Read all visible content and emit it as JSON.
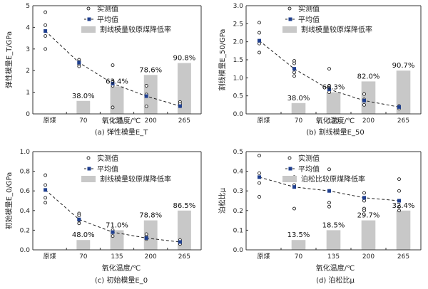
{
  "chart_data": [
    {
      "type": "bar",
      "categories": [
        "原煤",
        "70",
        "135",
        "200",
        "265"
      ],
      "ylabel": "弹性模量E_T/GPa",
      "xlabel": "氧化温度/℃",
      "caption": "(a) 弹性模量E_T",
      "ylim": [
        0,
        5
      ],
      "yticks": [
        "0",
        "1",
        "2",
        "3",
        "4",
        "5"
      ],
      "legend": [
        "实测值",
        "平均值",
        "割线模量较原煤降低率"
      ],
      "series": [
        {
          "kind": "scatter",
          "points": [
            [
              0,
              4.7
            ],
            [
              0,
              4.1
            ],
            [
              0,
              3.6
            ],
            [
              0,
              3.0
            ],
            [
              1,
              2.5
            ],
            [
              1,
              2.4
            ],
            [
              1,
              2.3
            ],
            [
              1,
              2.2
            ],
            [
              2,
              2.25
            ],
            [
              2,
              1.5
            ],
            [
              2,
              1.3
            ],
            [
              2,
              0.3
            ],
            [
              3,
              1.3
            ],
            [
              3,
              0.9
            ],
            [
              3,
              0.35
            ],
            [
              4,
              0.55
            ],
            [
              4,
              0.45
            ],
            [
              4,
              0.35
            ]
          ]
        },
        {
          "kind": "line",
          "values": [
            3.83,
            2.37,
            1.4,
            0.82,
            0.36
          ]
        },
        {
          "kind": "bar",
          "values": [
            null,
            0.6,
            1.27,
            1.8,
            2.35
          ]
        }
      ],
      "data_labels": [
        "",
        "38.0%",
        "63.4%",
        "78.6%",
        "90.8%"
      ]
    },
    {
      "type": "bar",
      "categories": [
        "原煤",
        "70",
        "135",
        "200",
        "265"
      ],
      "ylabel": "割线模量E_50/GPa",
      "xlabel": "氧化温度/℃",
      "caption": "(b) 割线模量E_50",
      "ylim": [
        0,
        3.0
      ],
      "yticks": [
        "0.0",
        "0.5",
        "1.0",
        "1.5",
        "2.0",
        "2.5",
        "3.0"
      ],
      "legend": [
        "实测值",
        "平均值",
        "割线模量较原煤降低率"
      ],
      "series": [
        {
          "kind": "scatter",
          "points": [
            [
              0,
              2.53
            ],
            [
              0,
              2.25
            ],
            [
              0,
              1.95
            ],
            [
              0,
              1.7
            ],
            [
              1,
              1.47
            ],
            [
              1,
              1.4
            ],
            [
              1,
              1.15
            ],
            [
              1,
              1.05
            ],
            [
              2,
              1.25
            ],
            [
              2,
              0.78
            ],
            [
              2,
              0.68
            ],
            [
              2,
              0.6
            ],
            [
              3,
              0.55
            ],
            [
              3,
              0.4
            ],
            [
              3,
              0.25
            ],
            [
              4,
              0.22
            ],
            [
              4,
              0.18
            ],
            [
              4,
              0.15
            ]
          ]
        },
        {
          "kind": "line",
          "values": [
            2.03,
            1.25,
            0.68,
            0.37,
            0.19
          ]
        },
        {
          "kind": "bar",
          "values": [
            null,
            0.3,
            0.6,
            0.9,
            1.2
          ]
        }
      ],
      "data_labels": [
        "",
        "38.0%",
        "66.3%",
        "82.0%",
        "90.7%"
      ]
    },
    {
      "type": "bar",
      "categories": [
        "原煤",
        "70",
        "135",
        "200",
        "265"
      ],
      "ylabel": "初始模量E_0/GPa",
      "xlabel": "氧化温度/℃",
      "caption": "(c) 初始模量E_0",
      "ylim": [
        0,
        1.0
      ],
      "yticks": [
        "0.0",
        "0.2",
        "0.4",
        "0.6",
        "0.8",
        "1.0"
      ],
      "legend": [
        "实测值",
        "平均值",
        "割线模量较原煤降低率"
      ],
      "series": [
        {
          "kind": "scatter",
          "points": [
            [
              0,
              0.76
            ],
            [
              0,
              0.66
            ],
            [
              0,
              0.53
            ],
            [
              0,
              0.48
            ],
            [
              1,
              0.37
            ],
            [
              1,
              0.35
            ],
            [
              1,
              0.3
            ],
            [
              1,
              0.27
            ],
            [
              2,
              0.2
            ],
            [
              2,
              0.18
            ],
            [
              2,
              0.14
            ],
            [
              3,
              0.16
            ],
            [
              3,
              0.13
            ],
            [
              3,
              0.11
            ],
            [
              4,
              0.1
            ],
            [
              4,
              0.08
            ],
            [
              4,
              0.06
            ]
          ]
        },
        {
          "kind": "line",
          "values": [
            0.61,
            0.31,
            0.18,
            0.12,
            0.08
          ]
        },
        {
          "kind": "bar",
          "values": [
            null,
            0.1,
            0.2,
            0.3,
            0.4
          ]
        }
      ],
      "data_labels": [
        "",
        "48.0%",
        "71.0%",
        "78.8%",
        "86.5%"
      ]
    },
    {
      "type": "bar",
      "categories": [
        "原煤",
        "70",
        "135",
        "200",
        "265"
      ],
      "ylabel": "泊松比μ",
      "xlabel": "氧化温度/℃",
      "caption": "(d) 泊松比μ",
      "ylim": [
        0,
        0.5
      ],
      "yticks": [
        "0.0",
        "0.1",
        "0.2",
        "0.3",
        "0.4",
        "0.5"
      ],
      "legend": [
        "实测值",
        "平均值",
        "泊松比较原煤降低率"
      ],
      "series": [
        {
          "kind": "scatter",
          "points": [
            [
              0,
              0.48
            ],
            [
              0,
              0.39
            ],
            [
              0,
              0.34
            ],
            [
              0,
              0.27
            ],
            [
              1,
              0.37
            ],
            [
              1,
              0.36
            ],
            [
              1,
              0.33
            ],
            [
              1,
              0.21
            ],
            [
              2,
              0.41
            ],
            [
              2,
              0.3
            ],
            [
              2,
              0.24
            ],
            [
              2,
              0.22
            ],
            [
              3,
              0.29
            ],
            [
              3,
              0.25
            ],
            [
              3,
              0.21
            ],
            [
              3,
              0.2
            ],
            [
              4,
              0.36
            ],
            [
              4,
              0.3
            ],
            [
              4,
              0.22
            ],
            [
              4,
              0.2
            ]
          ]
        },
        {
          "kind": "line",
          "values": [
            0.37,
            0.32,
            0.3,
            0.265,
            0.25
          ]
        },
        {
          "kind": "bar",
          "values": [
            null,
            0.05,
            0.1,
            0.15,
            0.2
          ]
        }
      ],
      "data_labels": [
        "",
        "13.5%",
        "18.5%",
        "29.7%",
        "32.4%"
      ]
    }
  ]
}
